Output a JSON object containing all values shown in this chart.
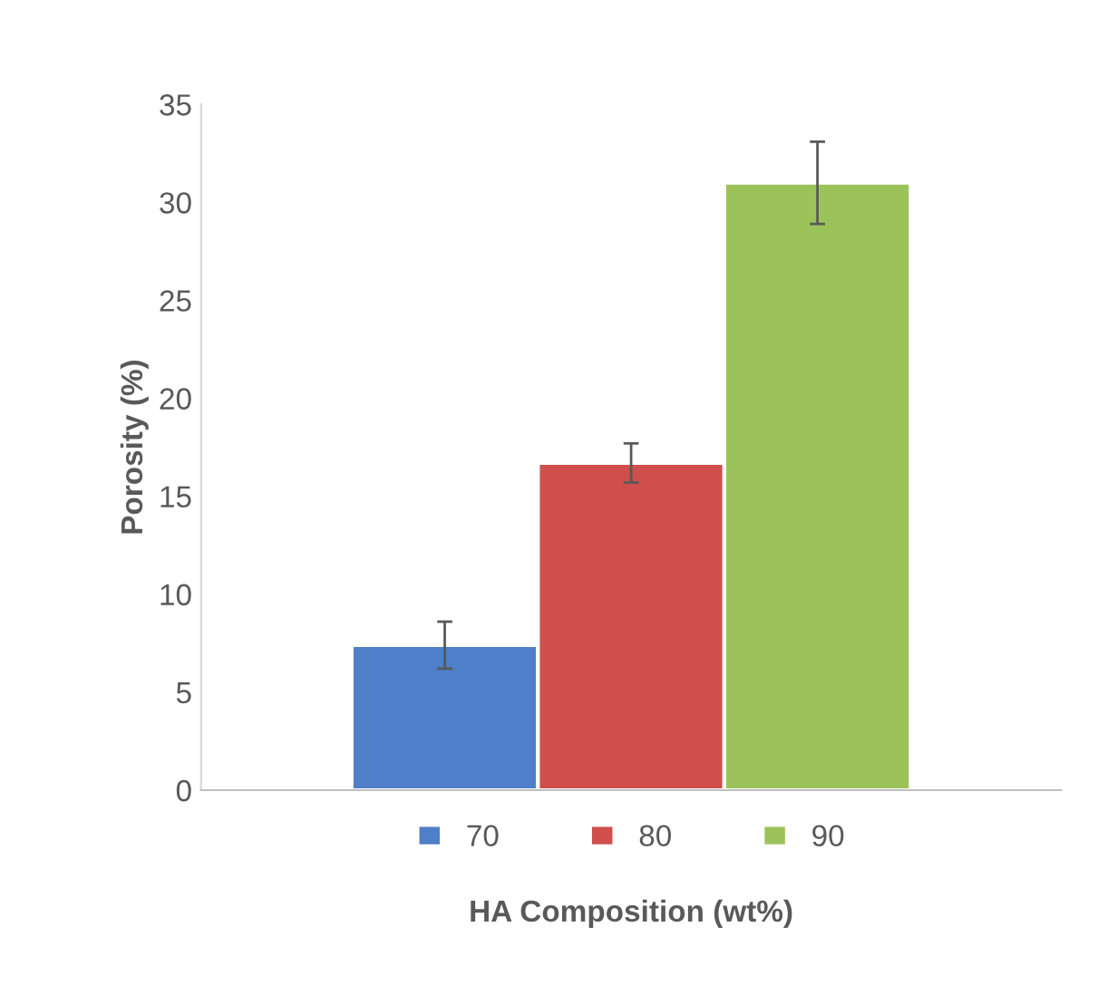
{
  "chart_data": {
    "type": "bar",
    "xlabel": "HA Composition (wt%)",
    "ylabel": "Porosity (%)",
    "categories": [
      null
    ],
    "series": [
      {
        "name": "70",
        "color": "#4f7fc8",
        "values": [
          7.4
        ],
        "errors": [
          1.2
        ]
      },
      {
        "name": "80",
        "color": "#d04e4c",
        "values": [
          16.7
        ],
        "errors": [
          1.0
        ]
      },
      {
        "name": "90",
        "color": "#9cc35a",
        "values": [
          31.0
        ],
        "errors": [
          2.1
        ]
      }
    ],
    "ylim": [
      0,
      35
    ],
    "yticks": [
      0,
      5,
      10,
      15,
      20,
      25,
      30,
      35
    ],
    "grid": false,
    "legend": "bottom"
  }
}
